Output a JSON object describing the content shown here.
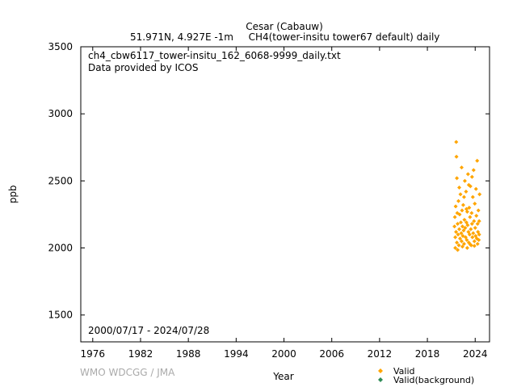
{
  "header": {
    "station": "Cesar (Cabauw)",
    "coords": "51.971N, 4.927E -1m",
    "series_desc": "CH4(tower-insitu tower67 default) daily"
  },
  "info": {
    "filename": "ch4_cbw6117_tower-insitu_162_6068-9999_daily.txt",
    "provider": "Data provided by ICOS",
    "period": "2000/07/17 - 2024/07/28"
  },
  "footer": {
    "credit": "WMO WDCGG / JMA"
  },
  "legend": {
    "items": [
      {
        "label": "Valid",
        "color": "#ffa500"
      },
      {
        "label": "Valid(background)",
        "color": "#2e8b57"
      }
    ]
  },
  "chart_data": {
    "type": "scatter",
    "xlabel": "Year",
    "ylabel": "ppb",
    "xlim": [
      1974.5,
      2025.8
    ],
    "ylim": [
      1300,
      3500
    ],
    "xticks": [
      1976,
      1982,
      1988,
      1994,
      2000,
      2006,
      2012,
      2018,
      2024
    ],
    "yticks": [
      1500,
      2000,
      2500,
      3000,
      3500
    ],
    "grid": false,
    "legend_position": "bottom-right",
    "series": [
      {
        "name": "Valid",
        "color": "#ffa500",
        "marker": "diamond",
        "points": [
          [
            2021.4,
            2160
          ],
          [
            2021.45,
            2230
          ],
          [
            2021.5,
            2080
          ],
          [
            2021.55,
            2310
          ],
          [
            2021.6,
            2120
          ],
          [
            2021.62,
            2790
          ],
          [
            2021.65,
            2680
          ],
          [
            2021.7,
            2040
          ],
          [
            2021.75,
            2260
          ],
          [
            2021.8,
            2180
          ],
          [
            2021.85,
            2100
          ],
          [
            2021.9,
            2350
          ],
          [
            2021.95,
            2020
          ],
          [
            2022.0,
            2140
          ],
          [
            2022.05,
            2250
          ],
          [
            2022.1,
            2070
          ],
          [
            2022.15,
            2400
          ],
          [
            2022.2,
            2190
          ],
          [
            2022.25,
            2110
          ],
          [
            2022.3,
            2050
          ],
          [
            2022.35,
            2280
          ],
          [
            2022.4,
            2160
          ],
          [
            2022.45,
            2090
          ],
          [
            2022.5,
            2320
          ],
          [
            2022.55,
            2130
          ],
          [
            2022.6,
            2030
          ],
          [
            2022.65,
            2210
          ],
          [
            2022.7,
            2500
          ],
          [
            2022.75,
            2150
          ],
          [
            2022.8,
            2080
          ],
          [
            2022.85,
            2420
          ],
          [
            2022.9,
            2190
          ],
          [
            2022.95,
            2060
          ],
          [
            2023.0,
            2270
          ],
          [
            2023.05,
            2170
          ],
          [
            2023.1,
            2550
          ],
          [
            2023.15,
            2120
          ],
          [
            2023.2,
            2040
          ],
          [
            2023.25,
            2300
          ],
          [
            2023.3,
            2100
          ],
          [
            2023.35,
            2230
          ],
          [
            2023.4,
            2460
          ],
          [
            2023.45,
            2140
          ],
          [
            2023.5,
            2020
          ],
          [
            2023.55,
            2260
          ],
          [
            2023.6,
            2180
          ],
          [
            2023.65,
            2080
          ],
          [
            2023.7,
            2380
          ],
          [
            2023.75,
            2110
          ],
          [
            2023.8,
            2580
          ],
          [
            2023.85,
            2200
          ],
          [
            2023.9,
            2050
          ],
          [
            2023.95,
            2330
          ],
          [
            2024.0,
            2150
          ],
          [
            2024.05,
            2090
          ],
          [
            2024.1,
            2440
          ],
          [
            2024.15,
            2240
          ],
          [
            2024.2,
            2070
          ],
          [
            2024.25,
            2650
          ],
          [
            2024.3,
            2180
          ],
          [
            2024.35,
            2120
          ],
          [
            2024.4,
            2280
          ],
          [
            2024.45,
            2060
          ],
          [
            2024.5,
            2200
          ],
          [
            2024.55,
            2400
          ],
          [
            2021.7,
            2520
          ],
          [
            2022.3,
            2600
          ],
          [
            2022.6,
            2380
          ],
          [
            2023.2,
            2470
          ],
          [
            2023.6,
            2530
          ],
          [
            2021.5,
            2000
          ],
          [
            2021.8,
            1985
          ],
          [
            2022.4,
            2010
          ],
          [
            2023.0,
            2000
          ],
          [
            2023.4,
            2025
          ],
          [
            2023.9,
            2015
          ],
          [
            2024.3,
            2030
          ],
          [
            2024.5,
            2100
          ],
          [
            2022.0,
            2450
          ],
          [
            2022.9,
            2290
          ]
        ]
      },
      {
        "name": "Valid(background)",
        "color": "#2e8b57",
        "marker": "diamond",
        "points": []
      }
    ]
  }
}
